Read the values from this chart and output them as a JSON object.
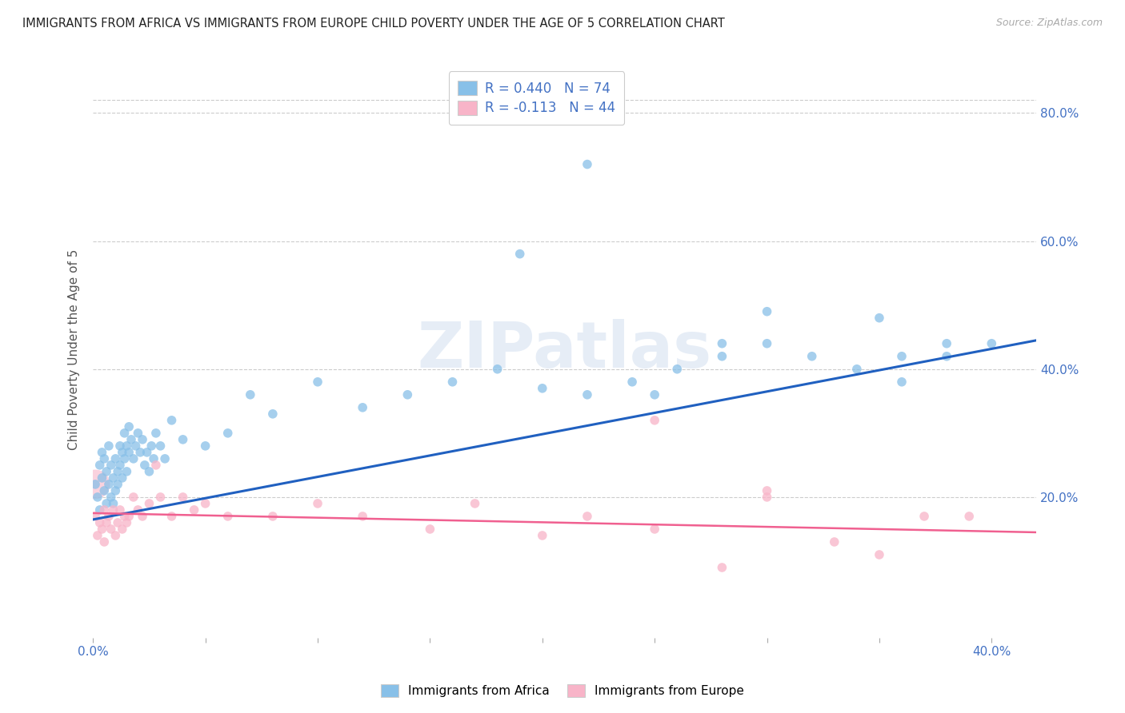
{
  "title": "IMMIGRANTS FROM AFRICA VS IMMIGRANTS FROM EUROPE CHILD POVERTY UNDER THE AGE OF 5 CORRELATION CHART",
  "source": "Source: ZipAtlas.com",
  "ylabel": "Child Poverty Under the Age of 5",
  "legend_africa": "Immigrants from Africa",
  "legend_europe": "Immigrants from Europe",
  "R_africa": 0.44,
  "N_africa": 74,
  "R_europe": -0.113,
  "N_europe": 44,
  "color_africa": "#88c0e8",
  "color_europe": "#f8b4c8",
  "color_africa_line": "#2060c0",
  "color_europe_line": "#f06090",
  "watermark_color": "#b8cce8",
  "xlim": [
    0.0,
    0.42
  ],
  "ylim": [
    -0.02,
    0.88
  ],
  "africa_line_x": [
    0.0,
    0.42
  ],
  "africa_line_y": [
    0.165,
    0.445
  ],
  "europe_line_x": [
    0.0,
    0.42
  ],
  "europe_line_y": [
    0.175,
    0.145
  ],
  "africa_x": [
    0.001,
    0.002,
    0.003,
    0.003,
    0.004,
    0.004,
    0.005,
    0.005,
    0.006,
    0.006,
    0.007,
    0.007,
    0.008,
    0.008,
    0.009,
    0.009,
    0.01,
    0.01,
    0.011,
    0.011,
    0.012,
    0.012,
    0.013,
    0.013,
    0.014,
    0.014,
    0.015,
    0.015,
    0.016,
    0.016,
    0.017,
    0.018,
    0.019,
    0.02,
    0.021,
    0.022,
    0.023,
    0.024,
    0.025,
    0.026,
    0.027,
    0.028,
    0.03,
    0.032,
    0.035,
    0.04,
    0.05,
    0.06,
    0.07,
    0.08,
    0.1,
    0.12,
    0.14,
    0.16,
    0.18,
    0.2,
    0.22,
    0.24,
    0.26,
    0.28,
    0.3,
    0.32,
    0.34,
    0.36,
    0.38,
    0.4,
    0.35,
    0.3,
    0.28,
    0.25,
    0.22,
    0.19,
    0.38,
    0.36
  ],
  "africa_y": [
    0.22,
    0.2,
    0.25,
    0.18,
    0.23,
    0.27,
    0.21,
    0.26,
    0.24,
    0.19,
    0.22,
    0.28,
    0.2,
    0.25,
    0.23,
    0.19,
    0.21,
    0.26,
    0.24,
    0.22,
    0.28,
    0.25,
    0.27,
    0.23,
    0.26,
    0.3,
    0.24,
    0.28,
    0.27,
    0.31,
    0.29,
    0.26,
    0.28,
    0.3,
    0.27,
    0.29,
    0.25,
    0.27,
    0.24,
    0.28,
    0.26,
    0.3,
    0.28,
    0.26,
    0.32,
    0.29,
    0.28,
    0.3,
    0.36,
    0.33,
    0.38,
    0.34,
    0.36,
    0.38,
    0.4,
    0.37,
    0.36,
    0.38,
    0.4,
    0.42,
    0.44,
    0.42,
    0.4,
    0.38,
    0.42,
    0.44,
    0.48,
    0.49,
    0.44,
    0.36,
    0.72,
    0.58,
    0.44,
    0.42
  ],
  "europe_x": [
    0.001,
    0.002,
    0.003,
    0.004,
    0.005,
    0.005,
    0.006,
    0.007,
    0.008,
    0.009,
    0.01,
    0.011,
    0.012,
    0.013,
    0.014,
    0.015,
    0.016,
    0.018,
    0.02,
    0.022,
    0.025,
    0.028,
    0.03,
    0.035,
    0.04,
    0.045,
    0.05,
    0.06,
    0.08,
    0.1,
    0.12,
    0.15,
    0.17,
    0.2,
    0.22,
    0.25,
    0.28,
    0.3,
    0.33,
    0.35,
    0.37,
    0.39,
    0.25,
    0.3
  ],
  "europe_y": [
    0.17,
    0.14,
    0.16,
    0.15,
    0.18,
    0.13,
    0.16,
    0.17,
    0.15,
    0.18,
    0.14,
    0.16,
    0.18,
    0.15,
    0.17,
    0.16,
    0.17,
    0.2,
    0.18,
    0.17,
    0.19,
    0.25,
    0.2,
    0.17,
    0.2,
    0.18,
    0.19,
    0.17,
    0.17,
    0.19,
    0.17,
    0.15,
    0.19,
    0.14,
    0.17,
    0.15,
    0.09,
    0.21,
    0.13,
    0.11,
    0.17,
    0.17,
    0.32,
    0.2
  ],
  "europe_big_x": [
    0.001
  ],
  "europe_big_y": [
    0.22
  ],
  "europe_big_size": 700
}
